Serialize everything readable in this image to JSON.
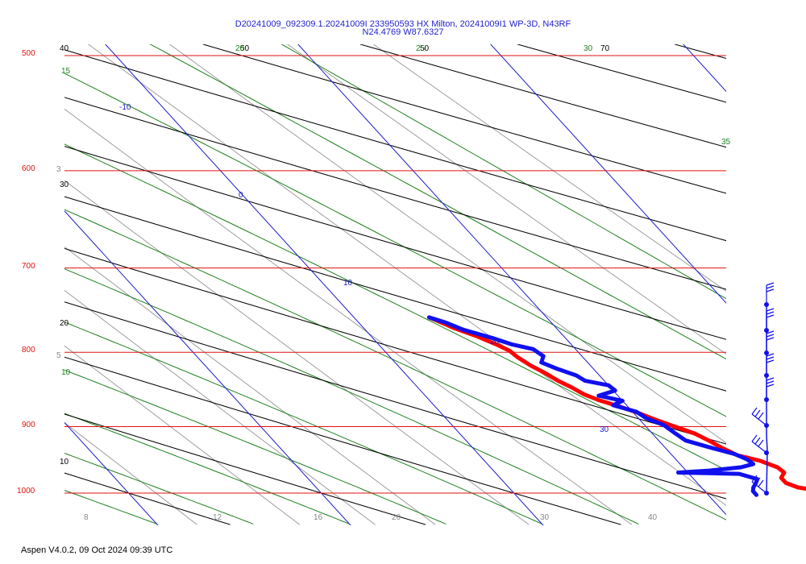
{
  "window": {
    "title_line1": "D20241009_092309.1.20241009I 233950593 HX Milton, 20241009I1 WP-3D, N43RF",
    "title_line2": "N24.4769 W87.6327",
    "footer": "Aspen V4.0.2, 09 Oct 2024  09:39 UTC"
  },
  "colors": {
    "isobar": "#e01010",
    "temperature": "#ff0000",
    "dewpoint": "#1010ee",
    "isotherm": "#1c1cc8",
    "dry_adiabat": "#000000",
    "moist_adiabat": "#1f7f1f",
    "mixing_ratio": "#9a9a9a",
    "wind": "#1010ee"
  },
  "chart_data": {
    "type": "line",
    "title": "D20241009_092309.1.20241009I 233950593 HX Milton, 20241009I1 WP-3D, N43RF",
    "subtitle": "N24.4769 W87.6327",
    "y_axis": {
      "scale": "log-pressure",
      "reversed": true,
      "range": [
        1000,
        500
      ],
      "tick_labels": [
        "500",
        "600",
        "700",
        "800",
        "900",
        "1000"
      ]
    },
    "x_axis": {
      "type": "skewed temperature",
      "bottom_tick_labels": [
        "8",
        "12",
        "16",
        "20",
        "30",
        "40"
      ]
    },
    "isotherm_labels": [
      "-10",
      "0",
      "10",
      "20",
      "30"
    ],
    "dry_adiabat_labels": [
      "40",
      "30",
      "20",
      "10",
      "70"
    ],
    "dry_adiabat_top_labels": [
      "40",
      "50",
      "70"
    ],
    "moist_adiabat_labels": [
      "15",
      "10",
      "35",
      "20",
      "25",
      "30"
    ],
    "mixing_ratio_labels": [
      "3",
      "5"
    ],
    "series": [
      {
        "name": "",
        "kind": "temperature",
        "color": "#ff0000",
        "points": [
          [
            1003,
            27.0
          ],
          [
            997,
            26.0
          ],
          [
            991,
            25.0
          ],
          [
            984,
            24.6
          ],
          [
            976,
            24.6
          ],
          [
            968,
            25.0
          ],
          [
            960,
            24.9
          ],
          [
            950,
            24.3
          ],
          [
            942,
            23.4
          ],
          [
            930,
            22.9
          ],
          [
            920,
            22.6
          ],
          [
            910,
            22.2
          ],
          [
            900,
            21.5
          ],
          [
            890,
            20.8
          ],
          [
            880,
            20.2
          ],
          [
            871,
            19.5
          ],
          [
            863,
            18.8
          ],
          [
            855,
            18.3
          ],
          [
            846,
            18.0
          ],
          [
            837,
            17.6
          ],
          [
            827,
            17.3
          ],
          [
            817,
            16.9
          ],
          [
            806,
            16.6
          ],
          [
            798,
            16.5
          ],
          [
            790,
            16.1
          ],
          [
            780,
            15.5
          ],
          [
            770,
            14.7
          ],
          [
            760,
            14.1
          ],
          [
            757,
            13.9
          ]
        ]
      },
      {
        "name": "",
        "kind": "dewpoint",
        "color": "#1010ee",
        "points": [
          [
            1003,
            22.5
          ],
          [
            997,
            22.5
          ],
          [
            991,
            22.7
          ],
          [
            985,
            23.0
          ],
          [
            978,
            23.3
          ],
          [
            970,
            22.6
          ],
          [
            968,
            19.5
          ],
          [
            965,
            21.2
          ],
          [
            960,
            23.0
          ],
          [
            955,
            23.8
          ],
          [
            948,
            23.7
          ],
          [
            940,
            23.3
          ],
          [
            930,
            22.3
          ],
          [
            920,
            21.4
          ],
          [
            910,
            21.2
          ],
          [
            898,
            21.0
          ],
          [
            888,
            20.4
          ],
          [
            879,
            20.2
          ],
          [
            870,
            19.3
          ],
          [
            864,
            20.0
          ],
          [
            857,
            19.0
          ],
          [
            850,
            20.1
          ],
          [
            843,
            20.0
          ],
          [
            837,
            19.0
          ],
          [
            830,
            18.8
          ],
          [
            821,
            18.1
          ],
          [
            813,
            17.6
          ],
          [
            805,
            18.0
          ],
          [
            796,
            17.8
          ],
          [
            790,
            16.9
          ],
          [
            782,
            16.2
          ],
          [
            772,
            15.1
          ],
          [
            763,
            14.5
          ],
          [
            757,
            13.9
          ]
        ]
      }
    ],
    "wind_barb_count": 8,
    "legend": "none",
    "grid": true
  }
}
